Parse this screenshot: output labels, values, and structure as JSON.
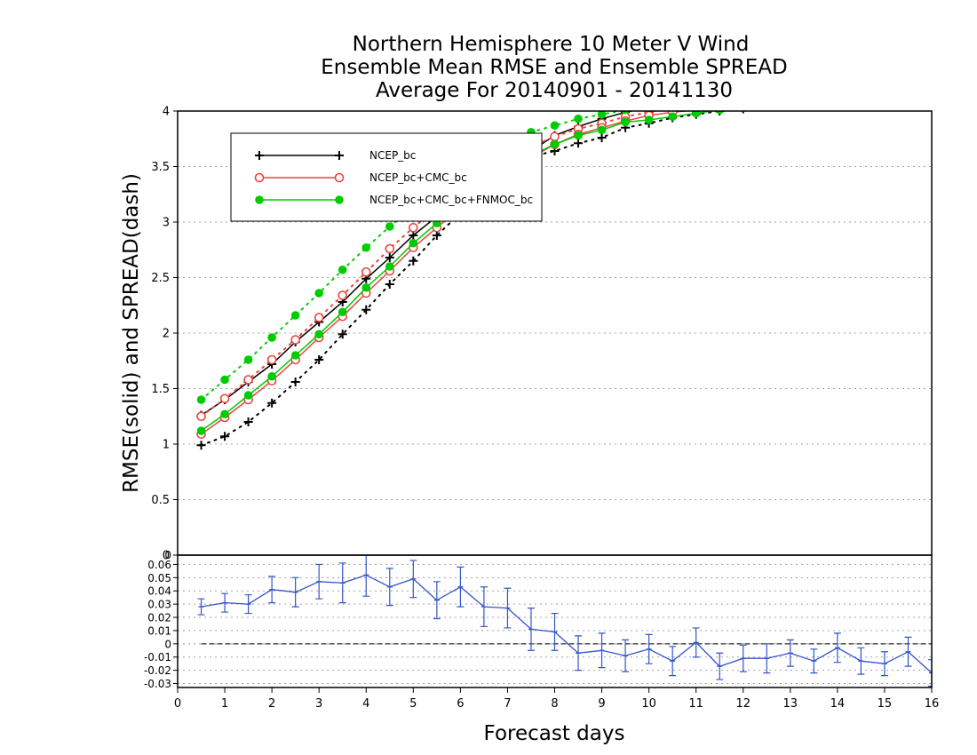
{
  "chart_data": [
    {
      "type": "line",
      "title_lines": [
        "Northern Hemisphere 10 Meter V Wind",
        "Ensemble Mean RMSE and Ensemble SPREAD",
        "Average For 20140901 - 20141130"
      ],
      "xlabel": "Forecast days",
      "ylabel": "RMSE(solid) and SPREAD(dash)",
      "xlim": [
        0,
        16
      ],
      "ylim": [
        0,
        4
      ],
      "x_ticks": [
        "0",
        "1",
        "2",
        "3",
        "4",
        "5",
        "6",
        "7",
        "8",
        "9",
        "10",
        "11",
        "12",
        "13",
        "14",
        "15",
        "16"
      ],
      "y_ticks": [
        "0",
        "0.5",
        "1",
        "1.5",
        "2",
        "2.5",
        "3",
        "3.5",
        "4"
      ],
      "grid": "horizontal dotted",
      "legend_position": "top-left",
      "x": [
        0.5,
        1,
        1.5,
        2,
        2.5,
        3,
        3.5,
        4,
        4.5,
        5,
        5.5,
        6,
        6.5,
        7,
        7.5,
        8,
        8.5,
        9,
        9.5,
        10,
        10.5,
        11,
        11.5,
        12,
        12.5,
        13,
        13.5,
        14,
        14.5,
        15,
        15.5,
        16
      ],
      "series": [
        {
          "name": "NCEP_bc",
          "color": "#000000",
          "marker": "plus",
          "rmse": [
            1.26,
            1.4,
            1.56,
            1.72,
            1.92,
            2.1,
            2.28,
            2.49,
            2.68,
            2.88,
            3.05,
            3.22,
            3.37,
            3.51,
            3.64,
            3.78,
            3.86,
            3.93,
            3.99,
            4.03,
            4.06,
            4.09,
            4.11,
            4.13,
            4.15,
            4.16,
            4.17,
            4.18,
            4.19,
            4.2,
            4.2,
            4.21
          ],
          "spread": [
            0.99,
            1.07,
            1.2,
            1.37,
            1.56,
            1.76,
            1.99,
            2.21,
            2.44,
            2.65,
            2.88,
            3.08,
            3.27,
            3.44,
            3.59,
            3.64,
            3.71,
            3.76,
            3.85,
            3.89,
            3.94,
            3.97,
            4.0,
            4.02,
            4.04,
            4.06,
            4.07,
            4.08,
            4.09,
            4.1,
            4.11,
            4.12
          ]
        },
        {
          "name": "NCEP_bc+CMC_bc",
          "color": "#e8453c",
          "marker": "circle-open",
          "rmse": [
            1.09,
            1.24,
            1.4,
            1.57,
            1.76,
            1.96,
            2.15,
            2.36,
            2.56,
            2.77,
            2.95,
            3.13,
            3.29,
            3.44,
            3.58,
            3.7,
            3.79,
            3.85,
            3.91,
            3.96,
            3.99,
            4.01,
            4.04,
            4.06,
            4.08,
            4.09,
            4.1,
            4.11,
            4.12,
            4.13,
            4.14,
            4.14
          ],
          "spread": [
            1.25,
            1.41,
            1.58,
            1.76,
            1.94,
            2.14,
            2.34,
            2.55,
            2.76,
            2.95,
            3.12,
            3.29,
            3.43,
            3.56,
            3.68,
            3.77,
            3.84,
            3.89,
            3.95,
            3.99,
            4.02,
            4.05,
            4.08,
            4.1,
            4.12,
            4.13,
            4.14,
            4.15,
            4.16,
            4.17,
            4.18,
            4.19
          ]
        },
        {
          "name": "NCEP_bc+CMC_bc+FNMOC_bc",
          "color": "#00cc00",
          "marker": "circle-filled",
          "rmse": [
            1.12,
            1.27,
            1.44,
            1.61,
            1.8,
            1.99,
            2.19,
            2.41,
            2.6,
            2.81,
            2.99,
            3.17,
            3.33,
            3.47,
            3.6,
            3.7,
            3.78,
            3.83,
            3.9,
            3.92,
            3.95,
            3.98,
            4.01,
            4.03,
            4.05,
            4.06,
            4.07,
            4.08,
            4.09,
            4.1,
            4.11,
            4.12
          ],
          "spread": [
            1.4,
            1.58,
            1.76,
            1.96,
            2.16,
            2.36,
            2.57,
            2.77,
            2.96,
            3.13,
            3.3,
            3.45,
            3.59,
            3.71,
            3.81,
            3.87,
            3.93,
            3.97,
            4.01,
            4.05,
            4.08,
            4.11,
            4.14,
            4.16,
            4.18,
            4.19,
            4.21,
            4.22,
            4.23,
            4.24,
            4.25,
            4.26
          ]
        }
      ]
    },
    {
      "type": "line",
      "xlim": [
        0,
        16
      ],
      "ylim": [
        -0.033,
        0.067
      ],
      "y_ticks": [
        "0.06",
        "0.05",
        "0.04",
        "0.03",
        "0.02",
        "0.01",
        "0",
        "-0.01",
        "-0.02",
        "-0.03"
      ],
      "y_ticks_top": [
        "0"
      ],
      "grid": "horizontal dotted",
      "zero_line": "dashed",
      "series": [
        {
          "color": "#3355cc",
          "error_bars": true,
          "x": [
            0.5,
            1,
            1.5,
            2,
            2.5,
            3,
            3.5,
            4,
            4.5,
            5,
            5.5,
            6,
            6.5,
            7,
            7.5,
            8,
            8.5,
            9,
            9.5,
            10,
            10.5,
            11,
            11.5,
            12,
            12.5,
            13,
            13.5,
            14,
            14.5,
            15,
            15.5,
            16
          ],
          "values": [
            0.028,
            0.031,
            0.03,
            0.041,
            0.039,
            0.047,
            0.046,
            0.052,
            0.043,
            0.049,
            0.033,
            0.043,
            0.028,
            0.027,
            0.011,
            0.009,
            -0.007,
            -0.005,
            -0.009,
            -0.004,
            -0.013,
            0.001,
            -0.017,
            -0.011,
            -0.011,
            -0.007,
            -0.013,
            -0.003,
            -0.013,
            -0.015,
            -0.006,
            -0.022
          ],
          "errors": [
            0.006,
            0.007,
            0.007,
            0.01,
            0.011,
            0.013,
            0.015,
            0.016,
            0.014,
            0.014,
            0.014,
            0.015,
            0.015,
            0.015,
            0.016,
            0.014,
            0.013,
            0.013,
            0.012,
            0.011,
            0.011,
            0.011,
            0.01,
            0.01,
            0.011,
            0.01,
            0.009,
            0.011,
            0.01,
            0.009,
            0.011,
            0.01
          ]
        }
      ]
    }
  ]
}
